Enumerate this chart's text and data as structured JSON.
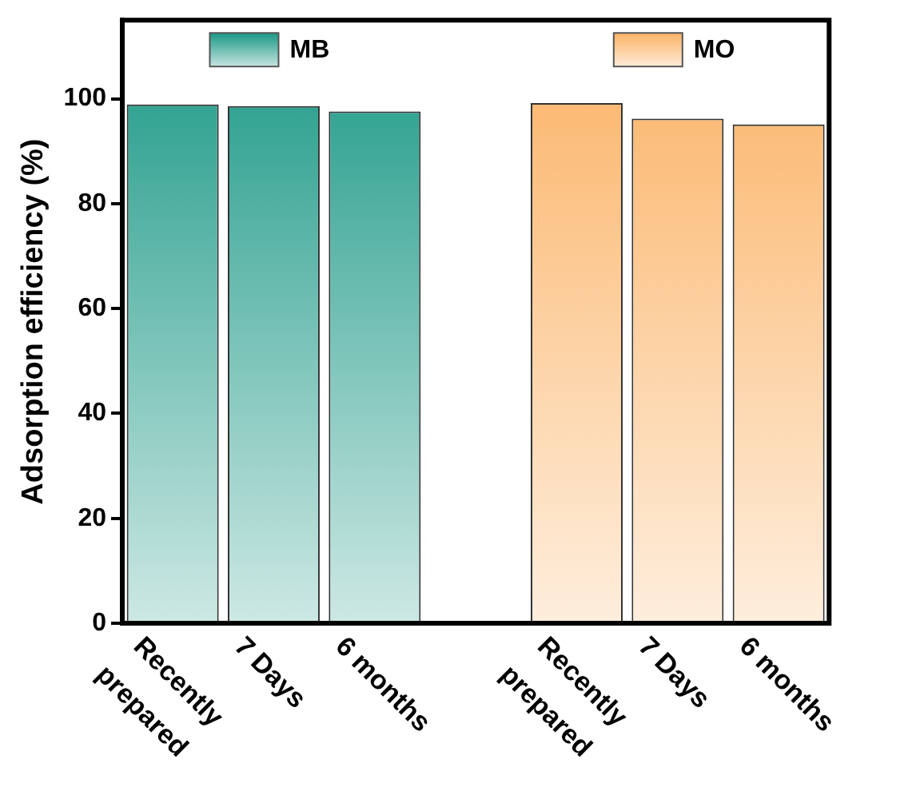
{
  "chart_data": {
    "type": "bar",
    "ylabel": "Adsorption efficiency (%)",
    "categories": [
      "Recently prepared",
      "7 Days",
      "6 months",
      null,
      "Recently prepared",
      "7 Days",
      "6 months"
    ],
    "series": [
      {
        "name": "MB",
        "color": "#1a9885",
        "values": [
          98.9,
          98.6,
          97.6,
          null,
          null,
          null,
          null
        ]
      },
      {
        "name": "MO",
        "color": "#fbb264",
        "values": [
          null,
          null,
          null,
          null,
          99.2,
          96.2,
          95.1
        ]
      }
    ],
    "ylim": [
      0,
      115
    ],
    "yticks": [
      0,
      20,
      40,
      60,
      80,
      100
    ],
    "grid": false,
    "legend": "top"
  }
}
